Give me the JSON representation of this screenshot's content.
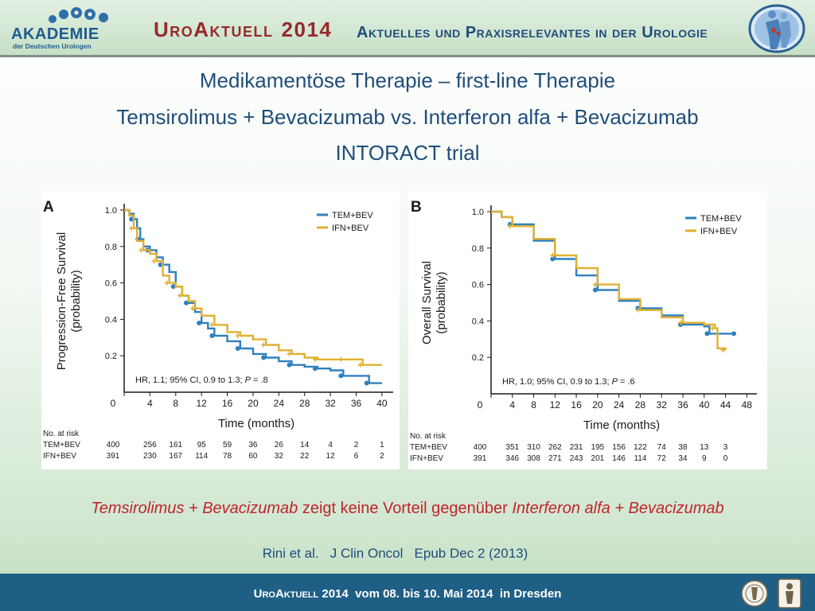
{
  "header": {
    "logo_title": "AKADEMIE",
    "logo_subtitle": "der Deutschen Urologen",
    "brand": "UroAktuell",
    "year": "2014",
    "tagline": "Aktuelles und Praxisrelevantes in der Urologie",
    "colors": {
      "brand": "#962a2a",
      "accent": "#1f4d7a",
      "logo": "#1e5b8f"
    }
  },
  "slide": {
    "title_line1": "Medikamentöse Therapie – first-line Therapie",
    "title_line2": "Temsirolimus + Bevacizumab vs. Interferon alfa + Bevacizumab",
    "title_line3": "INTORACT trial",
    "conclusion_drug1": "Temsirolimus + Bevacizumab",
    "conclusion_mid": " zeigt keine Vorteil gegenüber ",
    "conclusion_drug2": "Interferon alfa + Bevacizumab",
    "citation": "Rini et al.   J Clin Oncol   Epub Dec 2 (2013)"
  },
  "footer": {
    "brand": "UroAktuell",
    "text": " 2014  vom 08. bis 10. Mai 2014  in Dresden"
  },
  "chart_data": [
    {
      "type": "line",
      "panel_label": "A",
      "ylabel": "Progression-Free Survival (probability)",
      "xlabel": "Time (months)",
      "xlim": [
        0,
        41
      ],
      "ylim": [
        0,
        1.0
      ],
      "x_ticks": [
        0,
        4,
        8,
        12,
        16,
        20,
        24,
        28,
        32,
        36,
        40
      ],
      "y_ticks": [
        0.2,
        0.4,
        0.6,
        0.8,
        1.0
      ],
      "annotation": "HR, 1.1; 95% CI, 0.9 to 1.3; P = .8",
      "legend_position": "top-right",
      "series": [
        {
          "name": "TEM+BEV",
          "color": "#2f80c0",
          "points": [
            [
              0,
              1.0
            ],
            [
              0.8,
              0.98
            ],
            [
              1.5,
              0.95
            ],
            [
              2,
              0.9
            ],
            [
              2.5,
              0.84
            ],
            [
              3,
              0.8
            ],
            [
              4,
              0.78
            ],
            [
              5,
              0.74
            ],
            [
              6,
              0.7
            ],
            [
              7,
              0.66
            ],
            [
              8,
              0.58
            ],
            [
              9,
              0.53
            ],
            [
              10,
              0.49
            ],
            [
              11,
              0.44
            ],
            [
              12,
              0.38
            ],
            [
              13,
              0.35
            ],
            [
              14,
              0.31
            ],
            [
              16,
              0.28
            ],
            [
              18,
              0.24
            ],
            [
              20,
              0.21
            ],
            [
              22,
              0.19
            ],
            [
              24,
              0.17
            ],
            [
              26,
              0.15
            ],
            [
              28,
              0.14
            ],
            [
              30,
              0.13
            ],
            [
              32,
              0.12
            ],
            [
              34,
              0.09
            ],
            [
              36,
              0.09
            ],
            [
              38,
              0.05
            ],
            [
              40,
              0.05
            ]
          ]
        },
        {
          "name": "IFN+BEV",
          "color": "#e0b030",
          "points": [
            [
              0,
              1.0
            ],
            [
              0.8,
              0.97
            ],
            [
              1.5,
              0.9
            ],
            [
              2,
              0.83
            ],
            [
              3,
              0.78
            ],
            [
              4,
              0.76
            ],
            [
              5,
              0.72
            ],
            [
              6,
              0.64
            ],
            [
              7,
              0.6
            ],
            [
              8,
              0.58
            ],
            [
              9,
              0.53
            ],
            [
              10,
              0.5
            ],
            [
              11,
              0.46
            ],
            [
              12,
              0.42
            ],
            [
              14,
              0.37
            ],
            [
              16,
              0.33
            ],
            [
              18,
              0.31
            ],
            [
              20,
              0.29
            ],
            [
              22,
              0.26
            ],
            [
              24,
              0.23
            ],
            [
              26,
              0.21
            ],
            [
              28,
              0.19
            ],
            [
              30,
              0.18
            ],
            [
              32,
              0.18
            ],
            [
              34,
              0.18
            ],
            [
              36,
              0.18
            ],
            [
              37,
              0.15
            ],
            [
              40,
              0.15
            ]
          ]
        }
      ],
      "risk_table": {
        "header": "No. at risk",
        "x": [
          0,
          4,
          8,
          12,
          16,
          20,
          24,
          28,
          32,
          36,
          40
        ],
        "rows": [
          {
            "label": "TEM+BEV",
            "values": [
              "400",
              "256",
              "161",
              "95",
              "59",
              "36",
              "26",
              "14",
              "4",
              "2",
              "1"
            ]
          },
          {
            "label": "IFN+BEV",
            "values": [
              "391",
              "230",
              "167",
              "114",
              "78",
              "60",
              "32",
              "22",
              "12",
              "6",
              "2"
            ]
          }
        ]
      }
    },
    {
      "type": "line",
      "panel_label": "B",
      "ylabel": "Overall Survival (probability)",
      "xlabel": "Time (months)",
      "xlim": [
        0,
        49
      ],
      "ylim": [
        0,
        1.0
      ],
      "x_ticks": [
        0,
        4,
        8,
        12,
        16,
        20,
        24,
        28,
        32,
        36,
        40,
        44,
        48
      ],
      "y_ticks": [
        0.2,
        0.4,
        0.6,
        0.8,
        1.0
      ],
      "annotation": "HR, 1.0; 95% CI, 0.9 to 1.3; P = .6",
      "legend_position": "top-right",
      "series": [
        {
          "name": "TEM+BEV",
          "color": "#2f80c0",
          "points": [
            [
              0,
              1.0
            ],
            [
              2,
              0.97
            ],
            [
              4,
              0.93
            ],
            [
              8,
              0.84
            ],
            [
              12,
              0.74
            ],
            [
              16,
              0.65
            ],
            [
              20,
              0.57
            ],
            [
              24,
              0.51
            ],
            [
              28,
              0.47
            ],
            [
              32,
              0.43
            ],
            [
              36,
              0.38
            ],
            [
              40,
              0.37
            ],
            [
              41,
              0.33
            ],
            [
              44,
              0.33
            ],
            [
              46,
              0.33
            ]
          ]
        },
        {
          "name": "IFN+BEV",
          "color": "#e0b030",
          "points": [
            [
              0,
              1.0
            ],
            [
              2,
              0.97
            ],
            [
              4,
              0.92
            ],
            [
              8,
              0.85
            ],
            [
              12,
              0.76
            ],
            [
              16,
              0.69
            ],
            [
              20,
              0.6
            ],
            [
              24,
              0.52
            ],
            [
              28,
              0.46
            ],
            [
              32,
              0.42
            ],
            [
              36,
              0.39
            ],
            [
              40,
              0.38
            ],
            [
              42,
              0.36
            ],
            [
              42.5,
              0.25
            ],
            [
              44,
              0.24
            ]
          ]
        }
      ],
      "risk_table": {
        "header": "No. at risk",
        "x": [
          0,
          4,
          8,
          12,
          16,
          20,
          24,
          28,
          32,
          36,
          40,
          44
        ],
        "rows": [
          {
            "label": "TEM+BEV",
            "values": [
              "400",
              "351",
              "310",
              "262",
              "231",
              "195",
              "156",
              "122",
              "74",
              "38",
              "13",
              "3"
            ]
          },
          {
            "label": "IFN+BEV",
            "values": [
              "391",
              "346",
              "308",
              "271",
              "243",
              "201",
              "146",
              "114",
              "72",
              "34",
              "9",
              "0"
            ]
          }
        ]
      }
    }
  ]
}
